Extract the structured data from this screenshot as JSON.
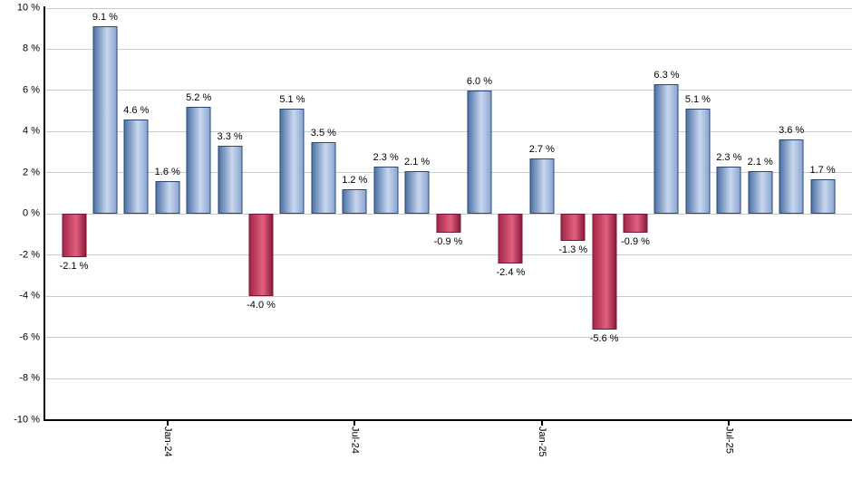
{
  "chart_data": {
    "type": "bar",
    "title": "",
    "xlabel": "",
    "ylabel": "",
    "ylim": [
      -10,
      10
    ],
    "y_tick_step": 2,
    "grid": true,
    "legend": null,
    "y_tick_labels": [
      "10 %",
      "8 %",
      "6 %",
      "4 %",
      "2 %",
      "0 %",
      "-2 %",
      "-4 %",
      "-6 %",
      "-8 %",
      "-10 %"
    ],
    "y_tick_values": [
      10,
      8,
      6,
      4,
      2,
      0,
      -2,
      -4,
      -6,
      -8,
      -10
    ],
    "bars": [
      {
        "value": -2.1,
        "label": "-2.1 %"
      },
      {
        "value": 9.1,
        "label": "9.1 %"
      },
      {
        "value": 4.6,
        "label": "4.6 %"
      },
      {
        "value": 1.6,
        "label": "1.6 %"
      },
      {
        "value": 5.2,
        "label": "5.2 %"
      },
      {
        "value": 3.3,
        "label": "3.3 %"
      },
      {
        "value": -4.0,
        "label": "-4.0 %"
      },
      {
        "value": 5.1,
        "label": "5.1 %"
      },
      {
        "value": 3.5,
        "label": "3.5 %"
      },
      {
        "value": 1.2,
        "label": "1.2 %"
      },
      {
        "value": 2.3,
        "label": "2.3 %"
      },
      {
        "value": 2.1,
        "label": "2.1 %"
      },
      {
        "value": -0.9,
        "label": "-0.9 %"
      },
      {
        "value": 6.0,
        "label": "6.0 %"
      },
      {
        "value": -2.4,
        "label": "-2.4 %"
      },
      {
        "value": 2.7,
        "label": "2.7 %"
      },
      {
        "value": -1.3,
        "label": "-1.3 %"
      },
      {
        "value": -5.6,
        "label": "-5.6 %"
      },
      {
        "value": -0.9,
        "label": "-0.9 %"
      },
      {
        "value": 6.3,
        "label": "6.3 %"
      },
      {
        "value": 5.1,
        "label": "5.1 %"
      },
      {
        "value": 2.3,
        "label": "2.3 %"
      },
      {
        "value": 2.1,
        "label": "2.1 %"
      },
      {
        "value": 3.6,
        "label": "3.6 %"
      },
      {
        "value": 1.7,
        "label": "1.7 %"
      }
    ],
    "x_ticks": [
      {
        "bar_index": 3,
        "label": "Jan-24"
      },
      {
        "bar_index": 9,
        "label": "Jul-24"
      },
      {
        "bar_index": 15,
        "label": "Jan-25"
      },
      {
        "bar_index": 21,
        "label": "Jul-25"
      }
    ],
    "colors": {
      "positive_border": "#2a4872",
      "positive_gradient": [
        "#4e73a6",
        "#c9d7ef",
        "#8ba5d2"
      ],
      "negative_border": "#7c1535",
      "negative_gradient": [
        "#a2284a",
        "#e25f7e",
        "#8c1c3e"
      ],
      "gridline": "#cccccc",
      "axis": "#000000",
      "text": "#000000",
      "background": "#ffffff"
    }
  }
}
